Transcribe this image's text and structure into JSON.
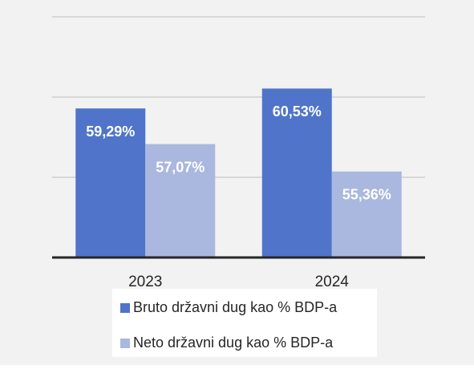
{
  "chart_data": {
    "type": "bar",
    "categories": [
      "2023",
      "2024"
    ],
    "series": [
      {
        "name": "Bruto državni dug kao % BDP-a",
        "color": "#4f74c9",
        "values": [
          59.29,
          60.53
        ],
        "value_labels": [
          "59,29%",
          "60,53%"
        ]
      },
      {
        "name": "Neto državni dug kao % BDP-a",
        "color": "#aab7de",
        "values": [
          57.07,
          55.36
        ],
        "value_labels": [
          "57,07%",
          "55,36%"
        ]
      }
    ],
    "ylim": [
      50,
      65
    ],
    "yticks": [
      50,
      55,
      60,
      65
    ],
    "grid": true,
    "legend": "bottom"
  }
}
